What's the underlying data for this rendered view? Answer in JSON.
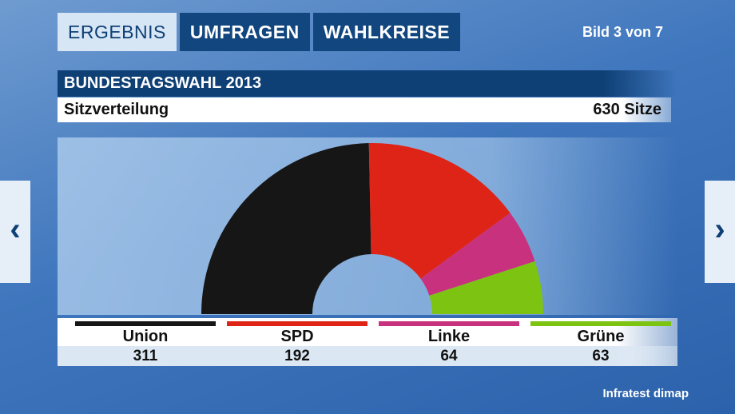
{
  "tabs": [
    {
      "label": "ERGEBNIS",
      "active": true
    },
    {
      "label": "UMFRAGEN",
      "active": false
    },
    {
      "label": "WAHLKREISE",
      "active": false
    }
  ],
  "pager": "Bild 3 von 7",
  "nav": {
    "prev_icon": "chevron-left-icon",
    "next_icon": "chevron-right-icon",
    "prev_glyph": "‹",
    "next_glyph": "›"
  },
  "chart_data": {
    "type": "pie",
    "subtype": "half-donut",
    "title": "BUNDESTAGSWAHL 2013",
    "subtitle": "Sitzverteilung",
    "total_label": "630 Sitze",
    "total": 630,
    "categories": [
      "Union",
      "SPD",
      "Linke",
      "Grüne"
    ],
    "values": [
      311,
      192,
      64,
      63
    ],
    "value_labels": [
      "311",
      "192",
      "64",
      "63"
    ],
    "colors": [
      "#161616",
      "#de2416",
      "#c8317e",
      "#7cc312"
    ]
  },
  "source": "Infratest dimap"
}
